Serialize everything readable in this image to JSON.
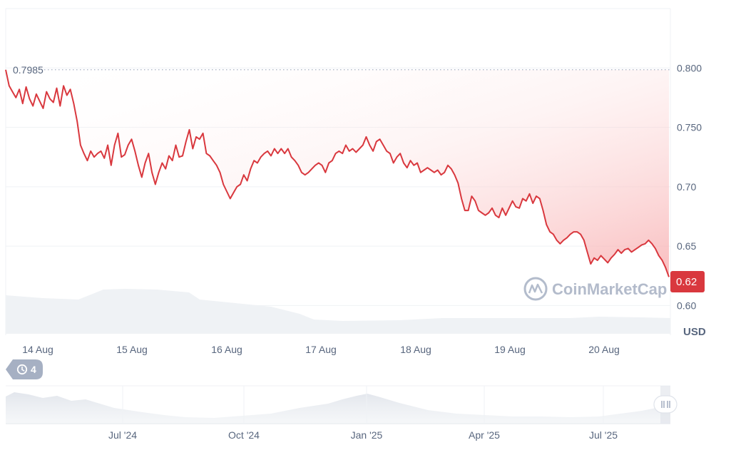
{
  "chart_data": {
    "type": "line",
    "currency": "USD",
    "y_ticks": [
      "0.800",
      "0.750",
      "0.70",
      "0.65",
      "0.60"
    ],
    "ylim": [
      0.575,
      0.85
    ],
    "start_value": 0.7985,
    "start_label": "0.7985",
    "current_value": 0.62,
    "current_label": "0.62",
    "x_ticks": [
      "14 Aug",
      "15 Aug",
      "16 Aug",
      "17 Aug",
      "18 Aug",
      "19 Aug",
      "20 Aug"
    ],
    "series": [
      {
        "values": [
          0.7985,
          0.785,
          0.78,
          0.775,
          0.782,
          0.77,
          0.784,
          0.774,
          0.768,
          0.778,
          0.772,
          0.766,
          0.78,
          0.774,
          0.771,
          0.783,
          0.768,
          0.785,
          0.777,
          0.782,
          0.77,
          0.755,
          0.735,
          0.728,
          0.722,
          0.73,
          0.725,
          0.728,
          0.73,
          0.724,
          0.735,
          0.718,
          0.735,
          0.745,
          0.725,
          0.727,
          0.735,
          0.74,
          0.73,
          0.718,
          0.708,
          0.72,
          0.728,
          0.712,
          0.702,
          0.712,
          0.72,
          0.715,
          0.726,
          0.722,
          0.735,
          0.725,
          0.726,
          0.738,
          0.748,
          0.732,
          0.742,
          0.74,
          0.745,
          0.728,
          0.726,
          0.722,
          0.718,
          0.712,
          0.702,
          0.696,
          0.69,
          0.695,
          0.7,
          0.702,
          0.71,
          0.705,
          0.715,
          0.722,
          0.72,
          0.725,
          0.728,
          0.73,
          0.726,
          0.732,
          0.728,
          0.732,
          0.728,
          0.732,
          0.725,
          0.722,
          0.718,
          0.712,
          0.71,
          0.712,
          0.715,
          0.718,
          0.72,
          0.718,
          0.712,
          0.72,
          0.722,
          0.728,
          0.73,
          0.728,
          0.735,
          0.73,
          0.732,
          0.729,
          0.732,
          0.735,
          0.742,
          0.735,
          0.73,
          0.738,
          0.74,
          0.735,
          0.73,
          0.728,
          0.72,
          0.725,
          0.728,
          0.72,
          0.716,
          0.722,
          0.718,
          0.72,
          0.712,
          0.714,
          0.716,
          0.714,
          0.712,
          0.714,
          0.71,
          0.712,
          0.718,
          0.715,
          0.71,
          0.703,
          0.69,
          0.68,
          0.68,
          0.692,
          0.688,
          0.68,
          0.678,
          0.676,
          0.678,
          0.682,
          0.676,
          0.674,
          0.682,
          0.676,
          0.682,
          0.688,
          0.683,
          0.682,
          0.69,
          0.688,
          0.694,
          0.686,
          0.692,
          0.69,
          0.68,
          0.668,
          0.662,
          0.66,
          0.655,
          0.652,
          0.655,
          0.657,
          0.66,
          0.662,
          0.662,
          0.66,
          0.655,
          0.645,
          0.635,
          0.64,
          0.638,
          0.642,
          0.639,
          0.636,
          0.64,
          0.643,
          0.647,
          0.644,
          0.647,
          0.648,
          0.645,
          0.647,
          0.649,
          0.651,
          0.652,
          0.655,
          0.652,
          0.648,
          0.642,
          0.638,
          0.632,
          0.624
        ]
      }
    ],
    "watermark": "CoinMarketCap",
    "badge_count": "4",
    "overview_x_ticks": [
      "Jul '24",
      "Oct '24",
      "Jan '25",
      "Apr '25",
      "Jul '25"
    ],
    "colors": {
      "line": "#ea3943",
      "line_dark": "#d9383e",
      "price_badge": "#d9383e",
      "volume": "#eff2f5",
      "grid": "#eff2f5",
      "axis_text": "#58667e",
      "dotted": "#a6b0c3",
      "watermark": "#a6b0c3",
      "pill_bg": "#a6b0c3"
    }
  }
}
